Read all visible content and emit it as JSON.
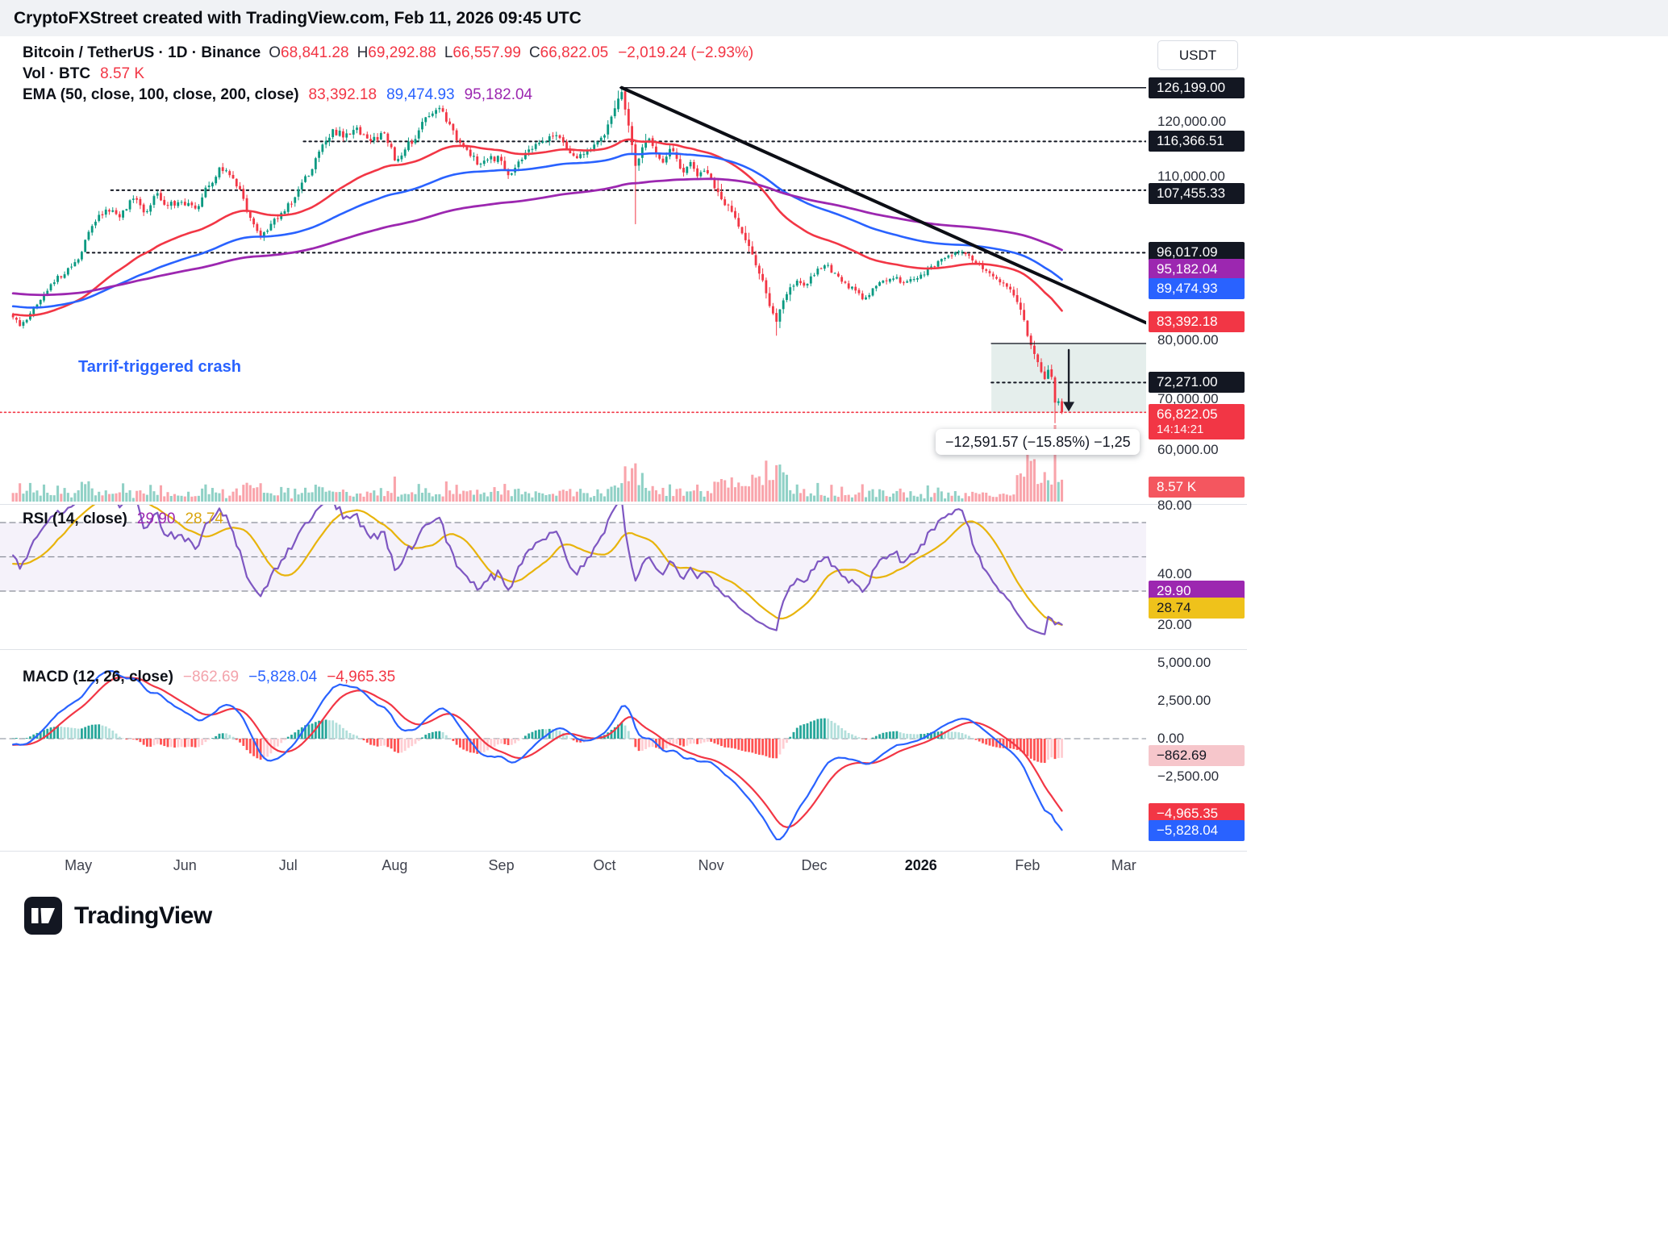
{
  "header": {
    "attribution": "CryptoFXStreet created with TradingView.com, Feb 11, 2026 09:45 UTC"
  },
  "legend": {
    "symbol": "Bitcoin / TetherUS · 1D · Binance",
    "o_label": "O",
    "o": "68,841.28",
    "h_label": "H",
    "h": "69,292.88",
    "l_label": "L",
    "l": "66,557.99",
    "c_label": "C",
    "c": "66,822.05",
    "change": "−2,019.24 (−2.93%)",
    "vol_label": "Vol · BTC",
    "vol_value": "8.57 K",
    "ema_label": "EMA (50, close, 100, close, 200, close)",
    "ema50": "83,392.18",
    "ema100": "89,474.93",
    "ema200": "95,182.04"
  },
  "rsi_legend": {
    "label": "RSI (14, close)",
    "value": "29.90",
    "ma_value": "28.74"
  },
  "macd_legend": {
    "label": "MACD (12, 26, close)",
    "hist": "−862.69",
    "macd": "−5,828.04",
    "signal": "−4,965.35"
  },
  "annotations": {
    "crash_label": "Tarrif-triggered crash",
    "measure_tooltip": "−12,591.57 (−15.85%) −1,25",
    "countdown": "14:14:21"
  },
  "axis": {
    "currency": "USDT",
    "price_labels": [
      {
        "text": "126,199.00",
        "value": 126199.0,
        "type": "level"
      },
      {
        "text": "120,000.00",
        "value": 120000,
        "type": "plain"
      },
      {
        "text": "116,366.51",
        "value": 116366.51,
        "type": "level"
      },
      {
        "text": "110,000.00",
        "value": 110000,
        "type": "plain"
      },
      {
        "text": "107,455.33",
        "value": 107455.33,
        "type": "level"
      },
      {
        "text": "96,017.09",
        "value": 96017.09,
        "type": "level"
      },
      {
        "text": "95,182.04",
        "value": 95182.04,
        "type": "ema200"
      },
      {
        "text": "89,474.93",
        "value": 89474.93,
        "type": "ema100"
      },
      {
        "text": "83,392.18",
        "value": 83392.18,
        "type": "ema50"
      },
      {
        "text": "80,000.00",
        "value": 80000,
        "type": "plain"
      },
      {
        "text": "72,271.00",
        "value": 72271.0,
        "type": "level"
      },
      {
        "text": "70,000.00",
        "value": 70000,
        "type": "plain"
      },
      {
        "text": "66,822.05",
        "value": 66822.05,
        "type": "last"
      },
      {
        "text": "60,000.00",
        "value": 60000,
        "type": "plain"
      },
      {
        "text": "8.57 K",
        "type": "volume"
      }
    ],
    "rsi_labels": [
      {
        "text": "80.00",
        "value": 80,
        "type": "plain"
      },
      {
        "text": "40.00",
        "value": 40,
        "type": "plain"
      },
      {
        "text": "29.90",
        "value": 29.9,
        "type": "rsi"
      },
      {
        "text": "28.74",
        "value": 28.74,
        "type": "rsiMa"
      },
      {
        "text": "20.00",
        "value": 20,
        "type": "plain"
      }
    ],
    "macd_labels": [
      {
        "text": "5,000.00",
        "value": 5000,
        "type": "plain"
      },
      {
        "text": "2,500.00",
        "value": 2500,
        "type": "plain"
      },
      {
        "text": "0.00",
        "value": 0,
        "type": "plain"
      },
      {
        "text": "−862.69",
        "value": -862.69,
        "type": "hist"
      },
      {
        "text": "−2,500.00",
        "value": -2500,
        "type": "plain"
      },
      {
        "text": "−4,965.35",
        "value": -4965.35,
        "type": "signal"
      },
      {
        "text": "−5,828.04",
        "value": -5828.04,
        "type": "macd"
      }
    ]
  },
  "footer": {
    "brand": "TradingView"
  },
  "chart_data": {
    "type": "candlestick",
    "symbol": "Bitcoin / TetherUS",
    "interval": "1D",
    "exchange": "Binance",
    "ohlc_last": {
      "open": 68841.28,
      "high": 69292.88,
      "low": 66557.99,
      "close": 66822.05,
      "change": -2019.24,
      "change_pct": -2.93
    },
    "price_scale": {
      "min": 50500,
      "max": 135600
    },
    "visible_range": {
      "total_days": 330,
      "last_bar_day": 305
    },
    "time_axis": [
      {
        "label": "May",
        "day": 19
      },
      {
        "label": "Jun",
        "day": 50
      },
      {
        "label": "Jul",
        "day": 80
      },
      {
        "label": "Aug",
        "day": 111
      },
      {
        "label": "Sep",
        "day": 142
      },
      {
        "label": "Oct",
        "day": 172
      },
      {
        "label": "Nov",
        "day": 203
      },
      {
        "label": "Dec",
        "day": 233
      },
      {
        "label": "2026",
        "day": 264,
        "bold": true
      },
      {
        "label": "Feb",
        "day": 295
      },
      {
        "label": "Mar",
        "day": 323
      }
    ],
    "close_anchors": [
      [
        0,
        84200
      ],
      [
        2,
        82600
      ],
      [
        5,
        84900
      ],
      [
        8,
        87400
      ],
      [
        12,
        90600
      ],
      [
        16,
        93200
      ],
      [
        19,
        94800
      ],
      [
        23,
        100900
      ],
      [
        27,
        103900
      ],
      [
        31,
        102500
      ],
      [
        35,
        105900
      ],
      [
        38,
        103400
      ],
      [
        42,
        106900
      ],
      [
        45,
        104600
      ],
      [
        49,
        105300
      ],
      [
        53,
        104100
      ],
      [
        57,
        108300
      ],
      [
        60,
        111600
      ],
      [
        63,
        110200
      ],
      [
        66,
        107600
      ],
      [
        69,
        102400
      ],
      [
        72,
        98900
      ],
      [
        75,
        101300
      ],
      [
        79,
        103600
      ],
      [
        83,
        107600
      ],
      [
        87,
        111300
      ],
      [
        90,
        115800
      ],
      [
        93,
        118600
      ],
      [
        96,
        117100
      ],
      [
        100,
        118900
      ],
      [
        104,
        116400
      ],
      [
        108,
        117900
      ],
      [
        110,
        115300
      ],
      [
        111,
        112900
      ],
      [
        114,
        114900
      ],
      [
        118,
        118400
      ],
      [
        121,
        121000
      ],
      [
        124,
        122500
      ],
      [
        127,
        119500
      ],
      [
        130,
        116100
      ],
      [
        133,
        113700
      ],
      [
        136,
        112300
      ],
      [
        139,
        113700
      ],
      [
        142,
        112800
      ],
      [
        144,
        110200
      ],
      [
        147,
        112700
      ],
      [
        151,
        115000
      ],
      [
        155,
        116400
      ],
      [
        158,
        117500
      ],
      [
        161,
        115100
      ],
      [
        164,
        113300
      ],
      [
        167,
        114800
      ],
      [
        170,
        116300
      ],
      [
        172,
        117500
      ],
      [
        174,
        120900
      ],
      [
        176,
        124200
      ],
      [
        177,
        125400
      ],
      [
        178,
        122200
      ],
      [
        180,
        115700
      ],
      [
        181,
        111900
      ],
      [
        183,
        115300
      ],
      [
        185,
        116900
      ],
      [
        187,
        114100
      ],
      [
        189,
        112500
      ],
      [
        191,
        115000
      ],
      [
        193,
        113200
      ],
      [
        195,
        110700
      ],
      [
        197,
        112600
      ],
      [
        199,
        110000
      ],
      [
        201,
        111000
      ],
      [
        203,
        109700
      ],
      [
        205,
        107100
      ],
      [
        207,
        104700
      ],
      [
        209,
        103500
      ],
      [
        211,
        100800
      ],
      [
        213,
        98300
      ],
      [
        215,
        95700
      ],
      [
        217,
        92200
      ],
      [
        219,
        88600
      ],
      [
        221,
        84900
      ],
      [
        222,
        83400
      ],
      [
        224,
        87300
      ],
      [
        226,
        89700
      ],
      [
        228,
        90900
      ],
      [
        230,
        90000
      ],
      [
        233,
        91900
      ],
      [
        236,
        93700
      ],
      [
        239,
        92300
      ],
      [
        242,
        90500
      ],
      [
        245,
        89100
      ],
      [
        247,
        87500
      ],
      [
        250,
        89500
      ],
      [
        253,
        90900
      ],
      [
        256,
        91300
      ],
      [
        259,
        90500
      ],
      [
        262,
        91200
      ],
      [
        264,
        92000
      ],
      [
        267,
        93500
      ],
      [
        270,
        94900
      ],
      [
        273,
        95500
      ],
      [
        276,
        96200
      ],
      [
        279,
        94600
      ],
      [
        282,
        93000
      ],
      [
        285,
        91700
      ],
      [
        287,
        90600
      ],
      [
        289,
        89800
      ],
      [
        291,
        88200
      ],
      [
        292,
        87000
      ],
      [
        294,
        83700
      ],
      [
        295,
        80800
      ],
      [
        296,
        79100
      ],
      [
        297,
        77500
      ],
      [
        298,
        76000
      ],
      [
        299,
        74200
      ],
      [
        300,
        72900
      ],
      [
        301,
        74600
      ],
      [
        302,
        73300
      ],
      [
        303,
        68600
      ],
      [
        304,
        68841
      ],
      [
        305,
        66822.05
      ]
    ],
    "special_bars": {
      "177": {
        "high": 126199.0
      },
      "181": {
        "low": 101300
      },
      "222": {
        "low": 80900
      },
      "303": {
        "low": 64900
      },
      "305": {
        "open": 68841.28,
        "high": 69292.88,
        "low": 66557.99,
        "close": 66822.05
      }
    },
    "volume": {
      "current_k": 8.57,
      "max_k": 30
    },
    "colors": {
      "up": "#089981",
      "down": "#f23645"
    },
    "levels": [
      {
        "value": 126199.0,
        "style": "solid",
        "from_day": 177,
        "color": "#131722"
      },
      {
        "value": 116366.51,
        "style": "dotted",
        "from_day": 85,
        "color": "#131722"
      },
      {
        "value": 107455.33,
        "style": "dotted",
        "from_day": 29,
        "color": "#131722"
      },
      {
        "value": 96017.09,
        "style": "dotted",
        "from_day": 22,
        "color": "#131722"
      },
      {
        "value": 72271.0,
        "style": "dotted",
        "from_day": 285,
        "color": "#131722"
      }
    ],
    "current_price_line": {
      "value": 66822.05,
      "color": "#f23645"
    },
    "trendline": {
      "from": [
        177,
        126199
      ],
      "to": [
        330,
        83200
      ],
      "color": "#0c0e15",
      "width": 4
    },
    "measure": {
      "from_day": 285,
      "to_day": 330,
      "top": 79413.62,
      "bottom": 66822.05,
      "arrow_day": 307.5,
      "fill": "rgba(110,162,150,0.18)"
    },
    "emas": {
      "periods": [
        50,
        100,
        200
      ],
      "colors": [
        "#f23645",
        "#2962ff",
        "#9c27b0"
      ],
      "last_values": [
        83392.18,
        89474.93,
        95182.04
      ]
    },
    "rsi": {
      "period": 14,
      "last": 29.9,
      "ma_last": 28.74,
      "band": [
        30,
        70
      ],
      "color": "#7e57c2",
      "ma_color": "#e8b40c",
      "scale": {
        "top": 80.82,
        "bottom": -3.88
      },
      "pane_levels": [
        80,
        40,
        20
      ]
    },
    "macd": {
      "fast": 12,
      "slow": 26,
      "signal_period": 9,
      "last_hist": -862.69,
      "last_macd": -5828.04,
      "last_signal": -4965.35,
      "macd_color": "#2962ff",
      "signal_color": "#f23645",
      "hist_colors": [
        "#26a69a",
        "#b2dfdb",
        "#ff5252",
        "#ffcdd2"
      ],
      "scale": {
        "max": 5904,
        "min": -7393
      }
    }
  }
}
